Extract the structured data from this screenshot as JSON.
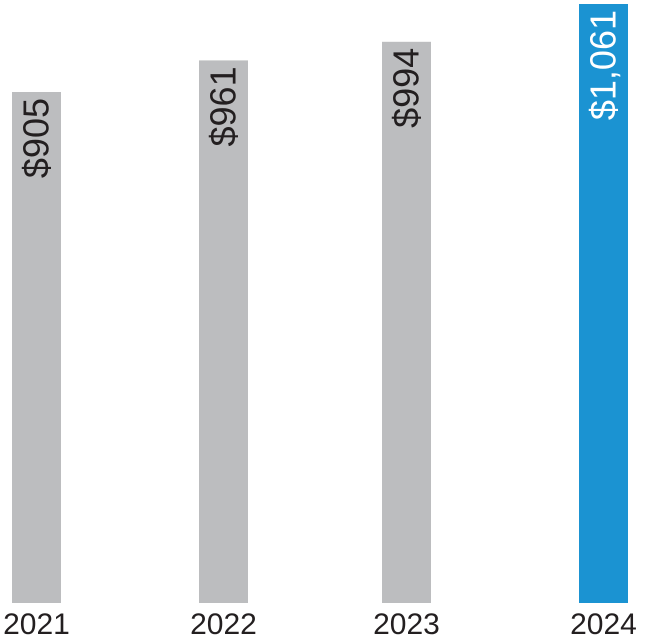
{
  "chart_data": {
    "type": "bar",
    "categories": [
      "2021",
      "2022",
      "2023",
      "2024"
    ],
    "values": [
      905,
      961,
      994,
      1061
    ],
    "value_labels": [
      "$905",
      "$961",
      "$994",
      "$1,061"
    ],
    "colors": [
      "#bcbdbf",
      "#bcbdbf",
      "#bcbdbf",
      "#1b93d2"
    ],
    "label_colors": [
      "#231f20",
      "#231f20",
      "#231f20",
      "#ffffff"
    ],
    "title": "",
    "xlabel": "",
    "ylabel": "",
    "ylim": [
      0,
      1068
    ],
    "grid": false,
    "legend": "none"
  }
}
